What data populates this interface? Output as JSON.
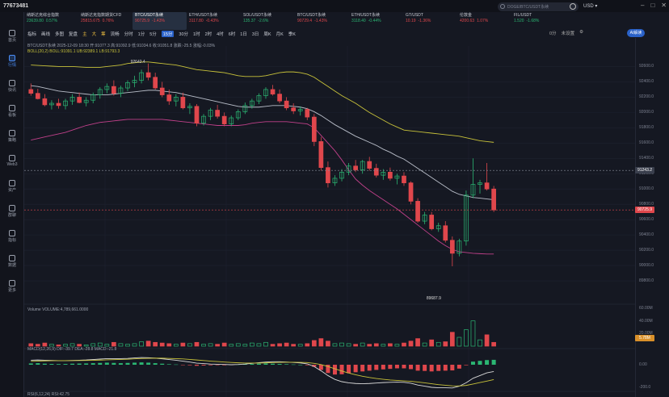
{
  "window": {
    "title": "77673481"
  },
  "search": {
    "placeholder": "DOGE/BTC/USDT永续"
  },
  "currency": "USD ▾",
  "tickers": [
    {
      "name": "纳斯达克综合指数",
      "price": "23639.80",
      "change": "0.57%",
      "dir": "up"
    },
    {
      "name": "纳斯达克指数期货CFD",
      "price": "25815.675",
      "change": "0.76%",
      "dir": "dn"
    },
    {
      "name": "BTC/USDT永续",
      "price": "90725.9",
      "change": "-1.43%",
      "dir": "dn",
      "active": true
    },
    {
      "name": "ETH/USDT永续",
      "price": "3117.80",
      "change": "-0.43%",
      "dir": "dn"
    },
    {
      "name": "SOL/USDT永续",
      "price": "135.37",
      "change": "-2.6%",
      "dir": "up"
    },
    {
      "name": "BTC/USDT永续",
      "price": "90729.4",
      "change": "-1.43%",
      "dir": "dn"
    },
    {
      "name": "ETH/USDT永续",
      "price": "3118.40",
      "change": "-0.44%",
      "dir": "up"
    },
    {
      "name": "GT/USDT",
      "price": "10.19",
      "change": "-1.36%",
      "dir": "dn"
    },
    {
      "name": "伦敦金",
      "price": "4200.63",
      "change": "1.07%",
      "dir": "dn"
    },
    {
      "name": "FIL/USDT",
      "price": "1.520",
      "change": "-1.68%",
      "dir": "up"
    }
  ],
  "sidebar": [
    "首页",
    "行情",
    "快讯",
    "看板",
    "策略",
    "Web3",
    "资产",
    "群聊",
    "指标",
    "数据",
    "更多"
  ],
  "toolbar": {
    "items": [
      "指标",
      "画线",
      "多图",
      "复盘",
      "主",
      "大",
      "筹",
      "流畅",
      "分时",
      "1分",
      "5分",
      "15分",
      "30分",
      "1时",
      "2时",
      "4时",
      "6时",
      "1日",
      "3日",
      "周K",
      "月K",
      "季K"
    ],
    "selected": "15分",
    "right": [
      "0分",
      "未设置",
      "⚙"
    ],
    "ai": "AI解读"
  },
  "info": {
    "line1": "BTC/USDT永续 2025-12-09 18:30  开:91077.3  高:91092.9  低:91034.6  收:91051.8  涨跌:-25.5  涨幅:-0.03%",
    "line2": "BOLL(20,2)  BOLL:91091.1  UB:92389.1  LB:91793.3"
  },
  "volume_header": "Volume  VOLUME:4,789,661.0000",
  "macd_header": "MACD(12,26,9)  DIF:-39.7  DEA:-28.8  MACD:-21.8",
  "rsi_header": "RSI(6,12,24)  RSI:42.75",
  "annotations": {
    "high": "92642.4",
    "low": "89687.9"
  },
  "price_axis": [
    "92600.0",
    "92400.0",
    "92200.0",
    "92000.0",
    "91800.0",
    "91600.0",
    "91400.0",
    "91200.0",
    "91000.0",
    "90800.0",
    "90600.0",
    "90400.0",
    "90200.0",
    "90000.0",
    "89800.0"
  ],
  "price_tags": {
    "crosshair": "91243.2",
    "last": "90725.9"
  },
  "volume_axis": [
    "60.00M",
    "40.00M",
    "20.00M"
  ],
  "volume_tag": "5.78M",
  "macd_axis": [
    "0.00",
    "-200.0"
  ],
  "colors": {
    "up": "#2bb673",
    "down": "#e0474c",
    "ub": "#c8c23a",
    "mid": "#b9bec9",
    "lb": "#c0408a",
    "dif": "#d9d9d9",
    "dea": "#c8c23a"
  },
  "chart_data": {
    "type": "candlestick",
    "ylim": [
      89600,
      92700
    ],
    "candles": [
      [
        92300,
        92380,
        92220,
        92250
      ],
      [
        92250,
        92310,
        92170,
        92180
      ],
      [
        92180,
        92240,
        92080,
        92100
      ],
      [
        92100,
        92160,
        92040,
        92120
      ],
      [
        92120,
        92180,
        92050,
        92090
      ],
      [
        92090,
        92180,
        92040,
        92150
      ],
      [
        92150,
        92240,
        92100,
        92200
      ],
      [
        92200,
        92260,
        92120,
        92130
      ],
      [
        92130,
        92200,
        92080,
        92160
      ],
      [
        92160,
        92260,
        92120,
        92230
      ],
      [
        92230,
        92330,
        92180,
        92300
      ],
      [
        92300,
        92380,
        92250,
        92340
      ],
      [
        92340,
        92420,
        92220,
        92250
      ],
      [
        92250,
        92350,
        92200,
        92320
      ],
      [
        92320,
        92420,
        92280,
        92390
      ],
      [
        92390,
        92480,
        92330,
        92420
      ],
      [
        92420,
        92560,
        92380,
        92520
      ],
      [
        92520,
        92640,
        92420,
        92460
      ],
      [
        92460,
        92520,
        92300,
        92320
      ],
      [
        92320,
        92400,
        92200,
        92230
      ],
      [
        92230,
        92300,
        92100,
        92150
      ],
      [
        92150,
        92240,
        92080,
        92200
      ],
      [
        92200,
        92260,
        92040,
        92060
      ],
      [
        92060,
        92120,
        91980,
        92080
      ],
      [
        92080,
        92110,
        91820,
        91860
      ],
      [
        91860,
        91980,
        91830,
        91950
      ],
      [
        91950,
        92060,
        91900,
        92030
      ],
      [
        92030,
        92100,
        91920,
        91950
      ],
      [
        91950,
        92000,
        91820,
        91850
      ],
      [
        91850,
        91960,
        91820,
        91930
      ],
      [
        91930,
        92040,
        91900,
        92010
      ],
      [
        92010,
        92130,
        91980,
        92090
      ],
      [
        92090,
        92180,
        92050,
        92150
      ],
      [
        92150,
        92250,
        92110,
        92220
      ],
      [
        92220,
        92330,
        92180,
        92300
      ],
      [
        92300,
        92360,
        92220,
        92240
      ],
      [
        92240,
        92300,
        92120,
        92150
      ],
      [
        92150,
        92200,
        92030,
        92060
      ],
      [
        92060,
        92120,
        91980,
        92020
      ],
      [
        92020,
        92080,
        91960,
        92040
      ],
      [
        92040,
        92060,
        91900,
        91940
      ],
      [
        91940,
        91980,
        91560,
        91620
      ],
      [
        91620,
        91680,
        91240,
        91280
      ],
      [
        91280,
        91360,
        91020,
        91080
      ],
      [
        91080,
        91180,
        91040,
        91140
      ],
      [
        91140,
        91260,
        91100,
        91220
      ],
      [
        91220,
        91340,
        91180,
        91300
      ],
      [
        91300,
        91380,
        91220,
        91250
      ],
      [
        91250,
        91380,
        91200,
        91360
      ],
      [
        91360,
        91420,
        91240,
        91270
      ],
      [
        91270,
        91330,
        91150,
        91180
      ],
      [
        91180,
        91260,
        91120,
        91220
      ],
      [
        91220,
        91280,
        91110,
        91140
      ],
      [
        91140,
        91200,
        91060,
        91170
      ],
      [
        91170,
        91220,
        91040,
        91080
      ],
      [
        91080,
        91100,
        90800,
        90840
      ],
      [
        90840,
        90880,
        90560,
        90580
      ],
      [
        90580,
        90700,
        90540,
        90660
      ],
      [
        90660,
        90700,
        90460,
        90480
      ],
      [
        90480,
        90560,
        90440,
        90520
      ],
      [
        90520,
        90580,
        90300,
        90330
      ],
      [
        90330,
        90380,
        89990,
        90160
      ],
      [
        90160,
        90350,
        90120,
        90320
      ],
      [
        90320,
        90980,
        90260,
        90920
      ],
      [
        90920,
        91400,
        90880,
        91060
      ],
      [
        91060,
        91120,
        90940,
        91080
      ],
      [
        91080,
        91340,
        90980,
        91000
      ],
      [
        91000,
        91040,
        90700,
        90726
      ]
    ],
    "boll_ub": [
      92620,
      92615,
      92610,
      92605,
      92600,
      92600,
      92600,
      92595,
      92590,
      92590,
      92590,
      92600,
      92610,
      92620,
      92640,
      92650,
      92660,
      92660,
      92650,
      92640,
      92630,
      92620,
      92600,
      92580,
      92560,
      92550,
      92540,
      92530,
      92520,
      92500,
      92480,
      92470,
      92470,
      92470,
      92480,
      92500,
      92520,
      92530,
      92530,
      92520,
      92500,
      92460,
      92400,
      92340,
      92280,
      92220,
      92170,
      92120,
      92060,
      92000,
      91950,
      91900,
      91850,
      91810,
      91770,
      91760,
      91750,
      91740,
      91730,
      91720,
      91710,
      91700,
      91690,
      91670,
      91650,
      91630,
      91620,
      91610
    ],
    "boll_mid": [
      92350,
      92340,
      92320,
      92300,
      92280,
      92270,
      92260,
      92250,
      92240,
      92230,
      92230,
      92230,
      92240,
      92250,
      92260,
      92270,
      92280,
      92290,
      92290,
      92280,
      92270,
      92260,
      92240,
      92220,
      92200,
      92180,
      92160,
      92140,
      92120,
      92100,
      92080,
      92070,
      92070,
      92070,
      92080,
      92090,
      92090,
      92090,
      92080,
      92070,
      92050,
      92010,
      91960,
      91900,
      91840,
      91790,
      91740,
      91690,
      91650,
      91610,
      91570,
      91520,
      91480,
      91430,
      91390,
      91330,
      91270,
      91210,
      91150,
      91090,
      91030,
      90970,
      90930,
      90910,
      90890,
      90880,
      90870,
      90860
    ],
    "boll_lb": [
      91640,
      91660,
      91680,
      91700,
      91720,
      91740,
      91770,
      91800,
      91830,
      91850,
      91870,
      91880,
      91890,
      91900,
      91910,
      91910,
      91910,
      91910,
      91910,
      91910,
      91900,
      91890,
      91880,
      91870,
      91860,
      91850,
      91840,
      91830,
      91830,
      91830,
      91830,
      91840,
      91860,
      91870,
      91880,
      91880,
      91880,
      91880,
      91870,
      91860,
      91850,
      91800,
      91700,
      91600,
      91500,
      91380,
      91250,
      91130,
      91050,
      90980,
      90920,
      90860,
      90800,
      90740,
      90670,
      90600,
      90530,
      90460,
      90390,
      90320,
      90260,
      90210,
      90180,
      90170,
      90160,
      90155,
      90150,
      90150
    ],
    "volume": [
      4,
      3,
      5,
      3,
      2,
      3,
      4,
      3,
      2,
      4,
      5,
      3,
      6,
      4,
      3,
      4,
      7,
      8,
      6,
      5,
      4,
      3,
      5,
      4,
      6,
      3,
      4,
      3,
      5,
      3,
      4,
      3,
      5,
      4,
      6,
      3,
      4,
      5,
      3,
      3,
      4,
      9,
      12,
      8,
      4,
      5,
      4,
      3,
      5,
      3,
      4,
      3,
      4,
      3,
      5,
      8,
      12,
      5,
      10,
      6,
      7,
      22,
      14,
      26,
      40,
      10,
      18,
      6
    ],
    "macd_hist": [
      10,
      12,
      8,
      6,
      5,
      6,
      8,
      9,
      10,
      12,
      14,
      16,
      14,
      12,
      14,
      16,
      18,
      16,
      12,
      8,
      4,
      2,
      -2,
      -4,
      -8,
      -6,
      -4,
      -2,
      -4,
      -2,
      2,
      4,
      6,
      8,
      10,
      8,
      6,
      4,
      2,
      0,
      -4,
      -16,
      -40,
      -64,
      -76,
      -74,
      -66,
      -58,
      -52,
      -46,
      -40,
      -36,
      -32,
      -28,
      -28,
      -34,
      -46,
      -48,
      -52,
      -48,
      -46,
      -44,
      -30,
      -4,
      24,
      30,
      36,
      38
    ],
    "dif": [
      40,
      42,
      40,
      38,
      36,
      36,
      38,
      40,
      42,
      46,
      50,
      54,
      54,
      54,
      56,
      60,
      64,
      62,
      58,
      52,
      46,
      40,
      32,
      24,
      14,
      10,
      6,
      4,
      2,
      0,
      2,
      6,
      12,
      18,
      24,
      26,
      26,
      24,
      20,
      16,
      8,
      -16,
      -54,
      -96,
      -130,
      -150,
      -160,
      -166,
      -168,
      -166,
      -162,
      -158,
      -156,
      -154,
      -156,
      -164,
      -180,
      -190,
      -200,
      -204,
      -204,
      -206,
      -190,
      -160,
      -120,
      -96,
      -72,
      -60
    ],
    "dea": [
      30,
      32,
      34,
      35,
      36,
      36,
      36,
      37,
      38,
      39,
      41,
      43,
      45,
      47,
      49,
      52,
      55,
      57,
      58,
      58,
      56,
      54,
      51,
      47,
      42,
      37,
      32,
      28,
      24,
      20,
      17,
      15,
      15,
      15,
      17,
      19,
      21,
      22,
      22,
      21,
      19,
      12,
      1,
      -16,
      -36,
      -56,
      -74,
      -89,
      -102,
      -113,
      -122,
      -129,
      -135,
      -139,
      -143,
      -147,
      -153,
      -160,
      -168,
      -176,
      -182,
      -187,
      -188,
      -183,
      -171,
      -158,
      -145,
      -132
    ]
  }
}
